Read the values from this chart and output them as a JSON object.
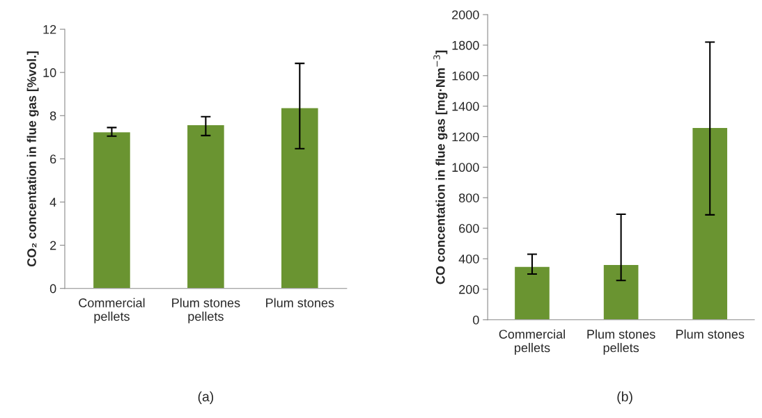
{
  "chart_data": [
    {
      "type": "bar",
      "categories": [
        "Commercial\npellets",
        "Plum stones\npellets",
        "Plum stones"
      ],
      "values": [
        7.25,
        7.58,
        8.37
      ],
      "color": "#6a9431",
      "errors": [
        [
          7.05,
          7.45
        ],
        [
          7.08,
          7.95
        ],
        [
          6.47,
          10.42
        ]
      ],
      "ylabel": "CO₂ concentation in flue gas [%vol.]",
      "ylim": [
        0,
        12
      ],
      "yticks": [
        0,
        2,
        4,
        6,
        8,
        10,
        12
      ],
      "grid": false,
      "legend": false,
      "annotations": [
        "(a)"
      ]
    },
    {
      "type": "bar",
      "categories": [
        "Commercial\npellets",
        "Plum stones\npellets",
        "Plum stones"
      ],
      "values": [
        350,
        362,
        1260
      ],
      "color": "#6a9431",
      "errors": [
        [
          300,
          430
        ],
        [
          258,
          692
        ],
        [
          688,
          1820
        ]
      ],
      "ylabel": "CO concentation in flue gas [mg·Nm$^{−3}$]",
      "ylim": [
        0,
        2000
      ],
      "yticks": [
        0,
        200,
        400,
        600,
        800,
        1000,
        1200,
        1400,
        1600,
        1800,
        2000
      ],
      "grid": false,
      "legend": false,
      "annotations": [
        "(b)"
      ]
    }
  ]
}
